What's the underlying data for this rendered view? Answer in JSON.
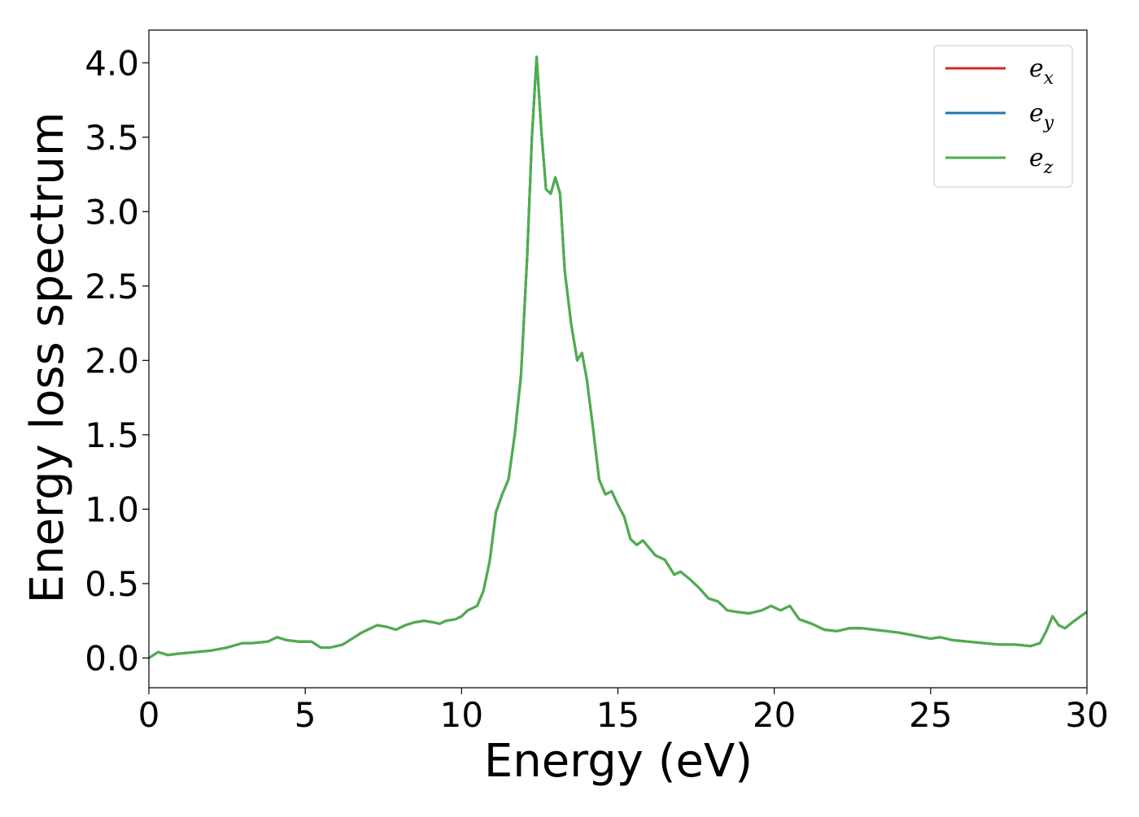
{
  "chart_data": {
    "type": "line",
    "title": "",
    "xlabel": "Energy (eV)",
    "ylabel": "Energy loss spectrum",
    "xlim": [
      0,
      30
    ],
    "ylim": [
      -0.2,
      4.22
    ],
    "xticks": [
      0,
      5,
      10,
      15,
      20,
      25,
      30
    ],
    "yticks": [
      0.0,
      0.5,
      1.0,
      1.5,
      2.0,
      2.5,
      3.0,
      3.5,
      4.0
    ],
    "ytick_format": "0.0",
    "grid": false,
    "legend_position": "top-right",
    "colors": {
      "e_x": "#d62728",
      "e_y": "#1f77b4",
      "e_z": "#4daf4a"
    },
    "legend": [
      {
        "base": "e",
        "sub": "x"
      },
      {
        "base": "e",
        "sub": "y"
      },
      {
        "base": "e",
        "sub": "z"
      }
    ],
    "x": [
      0.0,
      0.3,
      0.6,
      1.0,
      1.5,
      2.0,
      2.5,
      3.0,
      3.3,
      3.8,
      4.1,
      4.4,
      4.8,
      5.2,
      5.5,
      5.8,
      6.2,
      6.5,
      6.8,
      7.0,
      7.3,
      7.6,
      7.9,
      8.2,
      8.5,
      8.8,
      9.1,
      9.3,
      9.5,
      9.8,
      10.0,
      10.2,
      10.5,
      10.7,
      10.9,
      11.1,
      11.3,
      11.5,
      11.7,
      11.9,
      12.1,
      12.25,
      12.4,
      12.55,
      12.7,
      12.85,
      13.0,
      13.15,
      13.3,
      13.5,
      13.7,
      13.85,
      14.0,
      14.2,
      14.4,
      14.6,
      14.8,
      15.0,
      15.2,
      15.4,
      15.6,
      15.8,
      16.0,
      16.2,
      16.5,
      16.8,
      17.0,
      17.3,
      17.6,
      17.9,
      18.2,
      18.5,
      18.8,
      19.2,
      19.6,
      19.9,
      20.2,
      20.5,
      20.8,
      21.2,
      21.6,
      22.0,
      22.4,
      22.8,
      23.2,
      23.6,
      24.0,
      24.5,
      25.0,
      25.3,
      25.7,
      26.2,
      26.7,
      27.2,
      27.7,
      28.2,
      28.5,
      28.7,
      28.9,
      29.1,
      29.3,
      29.6,
      30.0
    ],
    "series": [
      {
        "name": "e_x",
        "values": [
          0.0,
          0.04,
          0.02,
          0.03,
          0.04,
          0.05,
          0.07,
          0.1,
          0.1,
          0.11,
          0.14,
          0.12,
          0.11,
          0.11,
          0.07,
          0.07,
          0.09,
          0.13,
          0.17,
          0.19,
          0.22,
          0.21,
          0.19,
          0.22,
          0.24,
          0.25,
          0.24,
          0.23,
          0.25,
          0.26,
          0.28,
          0.32,
          0.35,
          0.45,
          0.65,
          0.98,
          1.1,
          1.2,
          1.5,
          1.9,
          2.7,
          3.5,
          4.04,
          3.55,
          3.15,
          3.12,
          3.23,
          3.12,
          2.6,
          2.25,
          2.0,
          2.05,
          1.88,
          1.55,
          1.2,
          1.1,
          1.12,
          1.03,
          0.95,
          0.8,
          0.76,
          0.79,
          0.74,
          0.69,
          0.66,
          0.56,
          0.58,
          0.53,
          0.47,
          0.4,
          0.38,
          0.32,
          0.31,
          0.3,
          0.32,
          0.35,
          0.32,
          0.35,
          0.26,
          0.23,
          0.19,
          0.18,
          0.2,
          0.2,
          0.19,
          0.18,
          0.17,
          0.15,
          0.13,
          0.14,
          0.12,
          0.11,
          0.1,
          0.09,
          0.09,
          0.08,
          0.1,
          0.18,
          0.28,
          0.22,
          0.2,
          0.25,
          0.31
        ]
      },
      {
        "name": "e_y",
        "values": [
          0.0,
          0.04,
          0.02,
          0.03,
          0.04,
          0.05,
          0.07,
          0.1,
          0.1,
          0.11,
          0.14,
          0.12,
          0.11,
          0.11,
          0.07,
          0.07,
          0.09,
          0.13,
          0.17,
          0.19,
          0.22,
          0.21,
          0.19,
          0.22,
          0.24,
          0.25,
          0.24,
          0.23,
          0.25,
          0.26,
          0.28,
          0.32,
          0.35,
          0.45,
          0.65,
          0.98,
          1.1,
          1.2,
          1.5,
          1.9,
          2.7,
          3.5,
          4.04,
          3.55,
          3.15,
          3.12,
          3.23,
          3.12,
          2.6,
          2.25,
          2.0,
          2.05,
          1.88,
          1.55,
          1.2,
          1.1,
          1.12,
          1.03,
          0.95,
          0.8,
          0.76,
          0.79,
          0.74,
          0.69,
          0.66,
          0.56,
          0.58,
          0.53,
          0.47,
          0.4,
          0.38,
          0.32,
          0.31,
          0.3,
          0.32,
          0.35,
          0.32,
          0.35,
          0.26,
          0.23,
          0.19,
          0.18,
          0.2,
          0.2,
          0.19,
          0.18,
          0.17,
          0.15,
          0.13,
          0.14,
          0.12,
          0.11,
          0.1,
          0.09,
          0.09,
          0.08,
          0.1,
          0.18,
          0.28,
          0.22,
          0.2,
          0.25,
          0.31
        ]
      },
      {
        "name": "e_z",
        "values": [
          0.0,
          0.04,
          0.02,
          0.03,
          0.04,
          0.05,
          0.07,
          0.1,
          0.1,
          0.11,
          0.14,
          0.12,
          0.11,
          0.11,
          0.07,
          0.07,
          0.09,
          0.13,
          0.17,
          0.19,
          0.22,
          0.21,
          0.19,
          0.22,
          0.24,
          0.25,
          0.24,
          0.23,
          0.25,
          0.26,
          0.28,
          0.32,
          0.35,
          0.45,
          0.65,
          0.98,
          1.1,
          1.2,
          1.5,
          1.9,
          2.7,
          3.5,
          4.04,
          3.55,
          3.15,
          3.12,
          3.23,
          3.12,
          2.6,
          2.25,
          2.0,
          2.05,
          1.88,
          1.55,
          1.2,
          1.1,
          1.12,
          1.03,
          0.95,
          0.8,
          0.76,
          0.79,
          0.74,
          0.69,
          0.66,
          0.56,
          0.58,
          0.53,
          0.47,
          0.4,
          0.38,
          0.32,
          0.31,
          0.3,
          0.32,
          0.35,
          0.32,
          0.35,
          0.26,
          0.23,
          0.19,
          0.18,
          0.2,
          0.2,
          0.19,
          0.18,
          0.17,
          0.15,
          0.13,
          0.14,
          0.12,
          0.11,
          0.1,
          0.09,
          0.09,
          0.08,
          0.1,
          0.18,
          0.28,
          0.22,
          0.2,
          0.25,
          0.31
        ]
      }
    ]
  }
}
